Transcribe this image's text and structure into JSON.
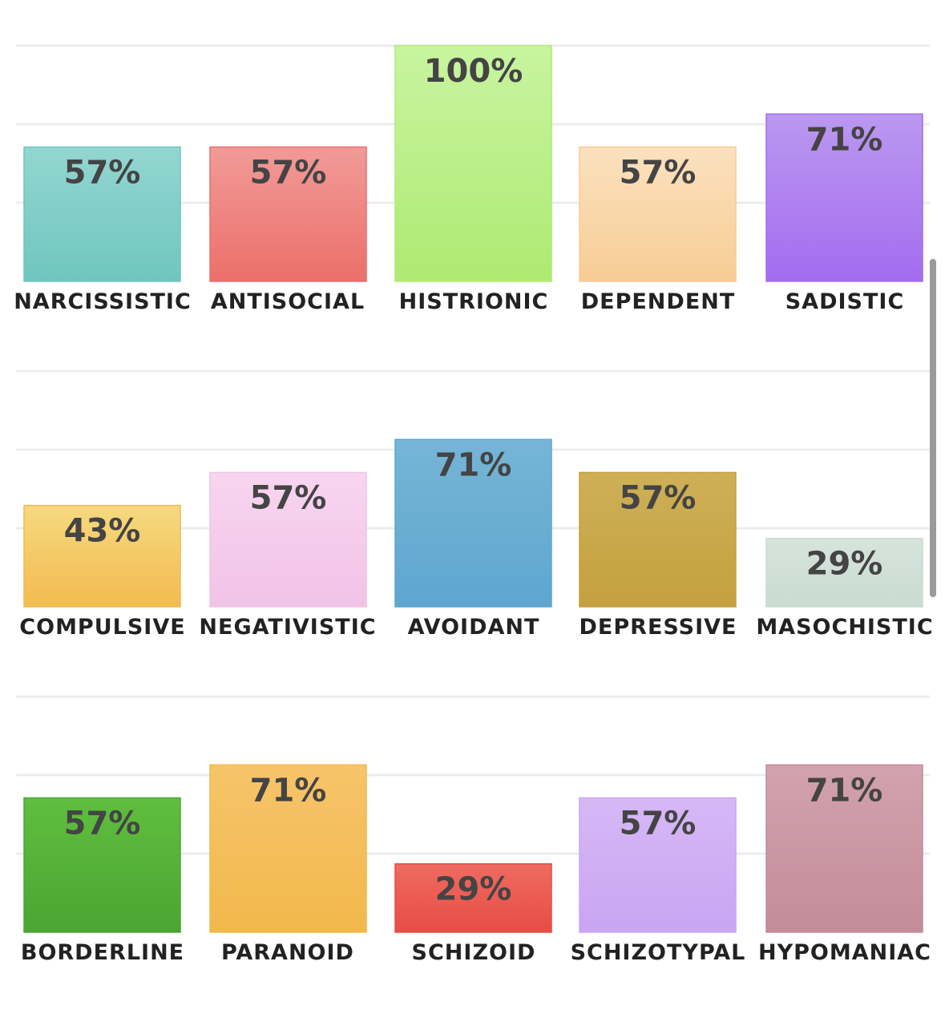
{
  "chart_data": [
    {
      "type": "bar",
      "categories": [
        "NARCISSISTIC",
        "ANTISOCIAL",
        "HISTRIONIC",
        "DEPENDENT",
        "SADISTIC"
      ],
      "values": [
        57,
        57,
        100,
        57,
        71
      ],
      "data_labels": [
        "57%",
        "57%",
        "100%",
        "57%",
        "71%"
      ],
      "colors": [
        [
          "#93d6d0",
          "#6fc6be"
        ],
        [
          "#f19b98",
          "#ec6f6a"
        ],
        [
          "#c8f4a0",
          "#aeea72"
        ],
        [
          "#fbe1bf",
          "#f7cc94"
        ],
        [
          "#bb98f0",
          "#a36cef"
        ]
      ],
      "ylim": [
        0,
        100
      ],
      "grid": true
    },
    {
      "type": "bar",
      "categories": [
        "COMPULSIVE",
        "NEGATIVISTIC",
        "AVOIDANT",
        "DEPRESSIVE",
        "MASOCHISTIC"
      ],
      "values": [
        43,
        57,
        71,
        57,
        29
      ],
      "data_labels": [
        "43%",
        "57%",
        "71%",
        "57%",
        "29%"
      ],
      "colors": [
        [
          "#f6d980",
          "#f2bb50"
        ],
        [
          "#f8d5f0",
          "#f1c3e7"
        ],
        [
          "#76b5d6",
          "#5ea6cf"
        ],
        [
          "#ceb057",
          "#c4a03f"
        ],
        [
          "#d6e4dc",
          "#c9dbd2"
        ]
      ],
      "ylim": [
        0,
        100
      ],
      "grid": true
    },
    {
      "type": "bar",
      "categories": [
        "BORDERLINE",
        "PARANOID",
        "SCHIZOID",
        "SCHIZOTYPAL",
        "HYPOMANIAC"
      ],
      "values": [
        57,
        71,
        29,
        57,
        71
      ],
      "data_labels": [
        "57%",
        "71%",
        "29%",
        "57%",
        "71%"
      ],
      "colors": [
        [
          "#5fbe3e",
          "#4ba532"
        ],
        [
          "#f6c46a",
          "#f2b84c"
        ],
        [
          "#ef6b60",
          "#e64d45"
        ],
        [
          "#d6b8f6",
          "#c9a5f2"
        ],
        [
          "#d2a2ae",
          "#c48c99"
        ]
      ],
      "ylim": [
        0,
        100
      ],
      "grid": true
    }
  ]
}
